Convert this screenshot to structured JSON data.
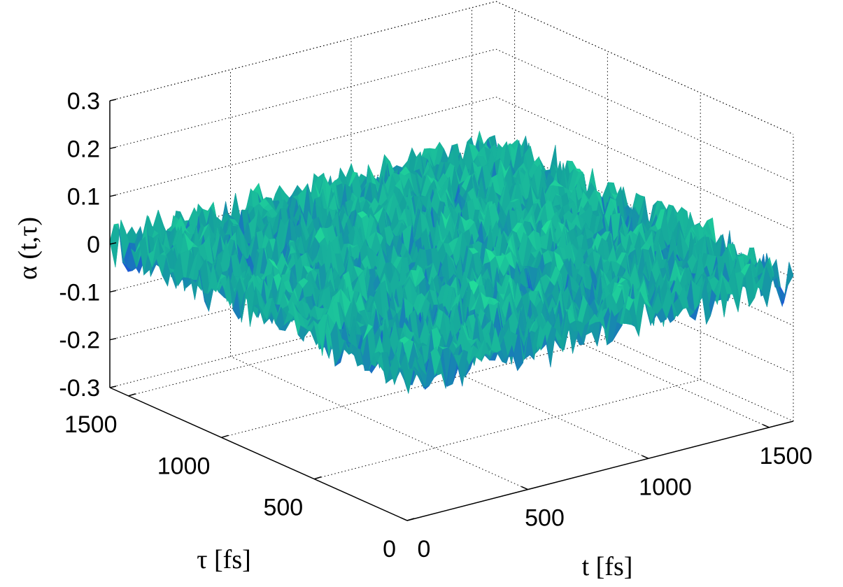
{
  "chart_data": {
    "type": "surface",
    "title": "",
    "xlabel": "t [fs]",
    "ylabel": "τ [fs]",
    "zlabel": "α (t,τ)",
    "xlim": [
      0,
      1600
    ],
    "ylim": [
      0,
      1600
    ],
    "zlim": [
      -0.3,
      0.3
    ],
    "xticks": [
      0,
      500,
      1000,
      1500
    ],
    "yticks": [
      0,
      500,
      1000,
      1500
    ],
    "zticks": [
      -0.3,
      -0.2,
      -0.1,
      0,
      0.1,
      0.2,
      0.3
    ],
    "xtick_labels": [
      "0",
      "500",
      "1000",
      "1500"
    ],
    "ytick_labels": [
      "0",
      "500",
      "1000",
      "1500"
    ],
    "ztick_labels": [
      "-0.3",
      "-0.2",
      "-0.1",
      "0",
      "0.1",
      "0.2",
      "0.3"
    ],
    "grid": true,
    "surface": {
      "description": "random fluctuation about zero",
      "mean": 0,
      "amplitude": 0.05,
      "colors": {
        "low": "#1f3fe6",
        "mid": "#15a39c",
        "high": "#22e39a"
      }
    }
  }
}
